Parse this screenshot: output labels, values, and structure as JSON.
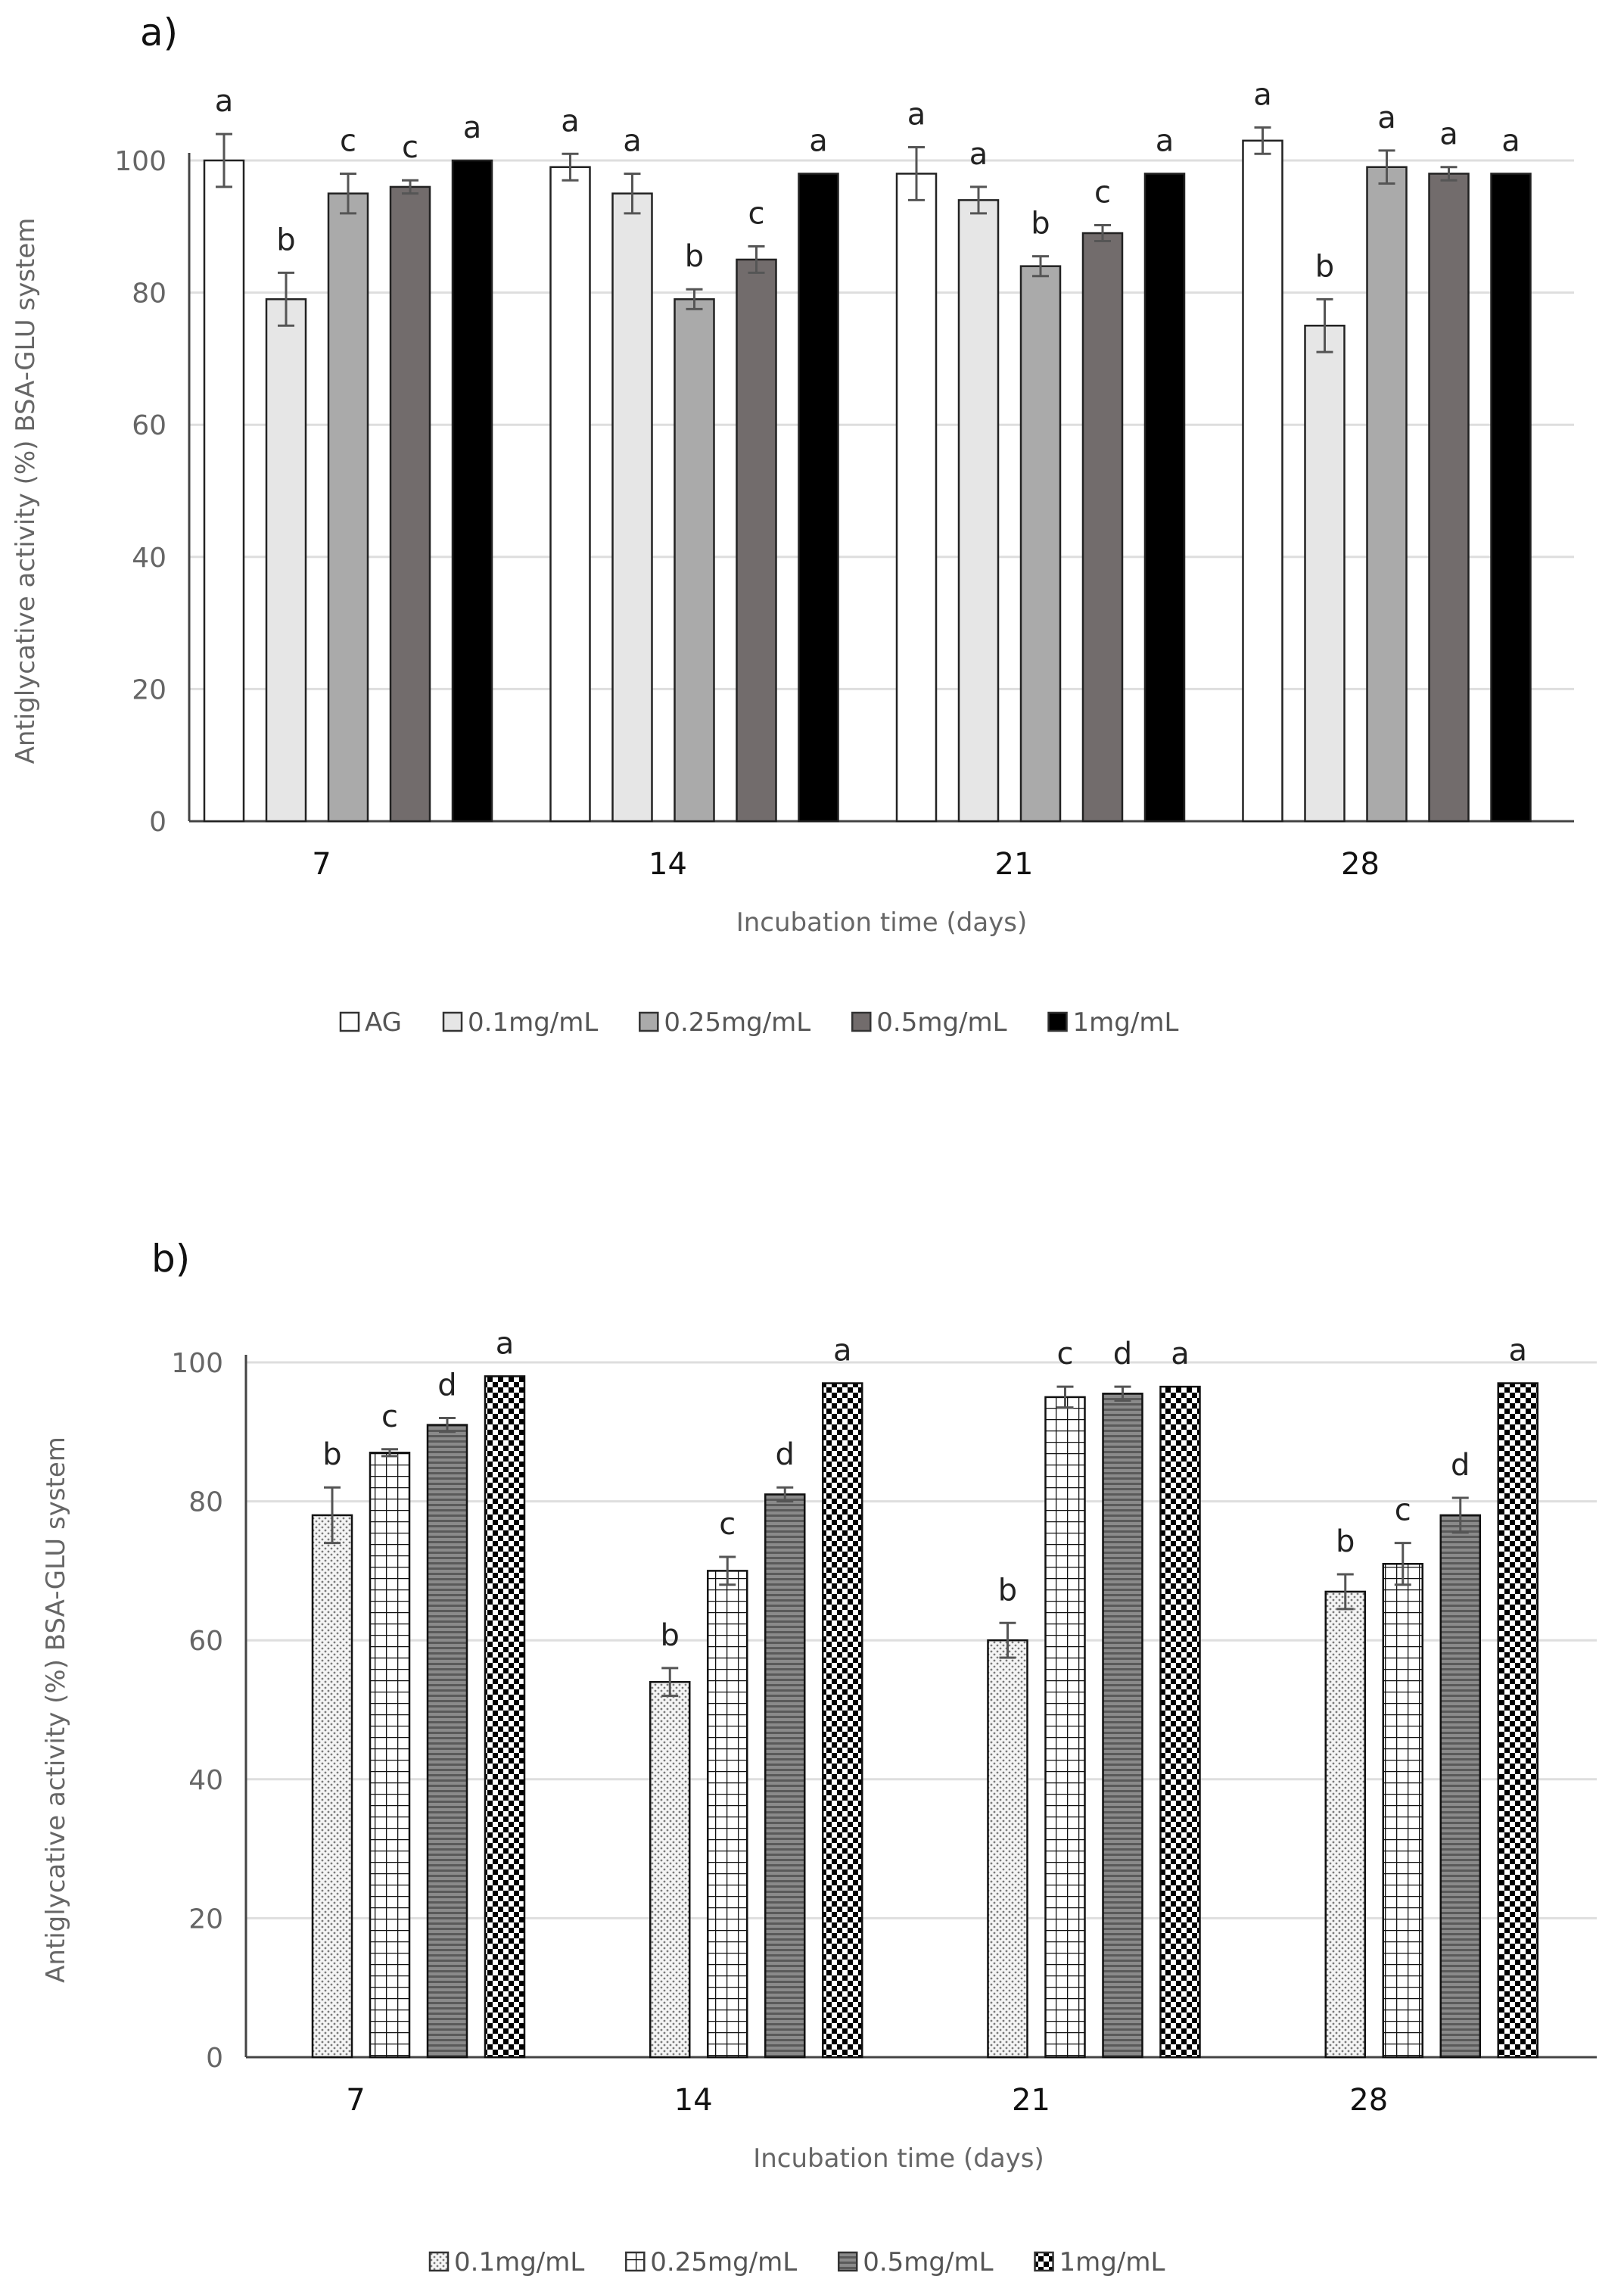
{
  "chart_data": [
    {
      "type": "bar",
      "title": "a)",
      "xlabel": "Incubation time (days)",
      "ylabel": "Antiglycative activity (%) BSA-GLU  system",
      "ylim": [
        0,
        100
      ],
      "yticks": [
        "0",
        "20",
        "40",
        "60",
        "80",
        "100"
      ],
      "grid": true,
      "legend_position": "bottom",
      "categories": [
        "7",
        "14",
        "21",
        "28"
      ],
      "series": [
        {
          "name": "AG",
          "color": "#ffffff",
          "pattern": "solid",
          "values": [
            100,
            99,
            98,
            103
          ],
          "errors": [
            4,
            2,
            4,
            2
          ],
          "labels": [
            "a",
            "a",
            "a",
            "a"
          ]
        },
        {
          "name": "0.1mg/mL",
          "color": "#e6e6e6",
          "pattern": "solid",
          "values": [
            79,
            95,
            94,
            75
          ],
          "errors": [
            4,
            3,
            2,
            4
          ],
          "labels": [
            "b",
            "a",
            "a",
            "b"
          ]
        },
        {
          "name": "0.25mg/mL",
          "color": "#aaaaaa",
          "pattern": "solid",
          "values": [
            95,
            79,
            84,
            99
          ],
          "errors": [
            3,
            1.5,
            1.5,
            2.5
          ],
          "labels": [
            "c",
            "b",
            "b",
            "a"
          ]
        },
        {
          "name": "0.5mg/mL",
          "color": "#726c6c",
          "pattern": "solid",
          "values": [
            96,
            85,
            89,
            98
          ],
          "errors": [
            1,
            2,
            1.2,
            1
          ],
          "labels": [
            "c",
            "c",
            "c",
            "a"
          ]
        },
        {
          "name": "1mg/mL",
          "color": "#000000",
          "pattern": "solid",
          "values": [
            100,
            98,
            98,
            98
          ],
          "errors": [
            0,
            0,
            0,
            0
          ],
          "labels": [
            "a",
            "a",
            "a",
            "a"
          ]
        }
      ]
    },
    {
      "type": "bar",
      "title": "b)",
      "xlabel": "Incubation time (days)",
      "ylabel": "Antiglycative activity (%) BSA-GLU  system",
      "ylim": [
        0,
        100
      ],
      "yticks": [
        "0",
        "20",
        "40",
        "60",
        "80",
        "100"
      ],
      "grid": true,
      "legend_position": "bottom",
      "categories": [
        "7",
        "14",
        "21",
        "28"
      ],
      "series": [
        {
          "name": "0.1mg/mL",
          "color": "#bdbdbd",
          "pattern": "dots",
          "values": [
            78,
            54,
            60,
            67
          ],
          "errors": [
            4,
            2,
            2.5,
            2.5
          ],
          "labels": [
            "b",
            "b",
            "b",
            "b"
          ]
        },
        {
          "name": "0.25mg/mL",
          "color": "#111111",
          "pattern": "grid",
          "values": [
            87,
            70,
            95,
            71
          ],
          "errors": [
            0.5,
            2,
            1.5,
            3
          ],
          "labels": [
            "c",
            "c",
            "c",
            "c"
          ]
        },
        {
          "name": "0.5mg/mL",
          "color": "#6e6e6e",
          "pattern": "hlines",
          "values": [
            91,
            81,
            95.5,
            78
          ],
          "errors": [
            1,
            1,
            1,
            2.5
          ],
          "labels": [
            "d",
            "d",
            "d",
            "d"
          ]
        },
        {
          "name": "1mg/mL",
          "color": "#000000",
          "pattern": "checker",
          "values": [
            98,
            97,
            96.5,
            97
          ],
          "errors": [
            0,
            0,
            0,
            0
          ],
          "labels": [
            "a",
            "a",
            "a",
            "a"
          ]
        }
      ]
    }
  ]
}
